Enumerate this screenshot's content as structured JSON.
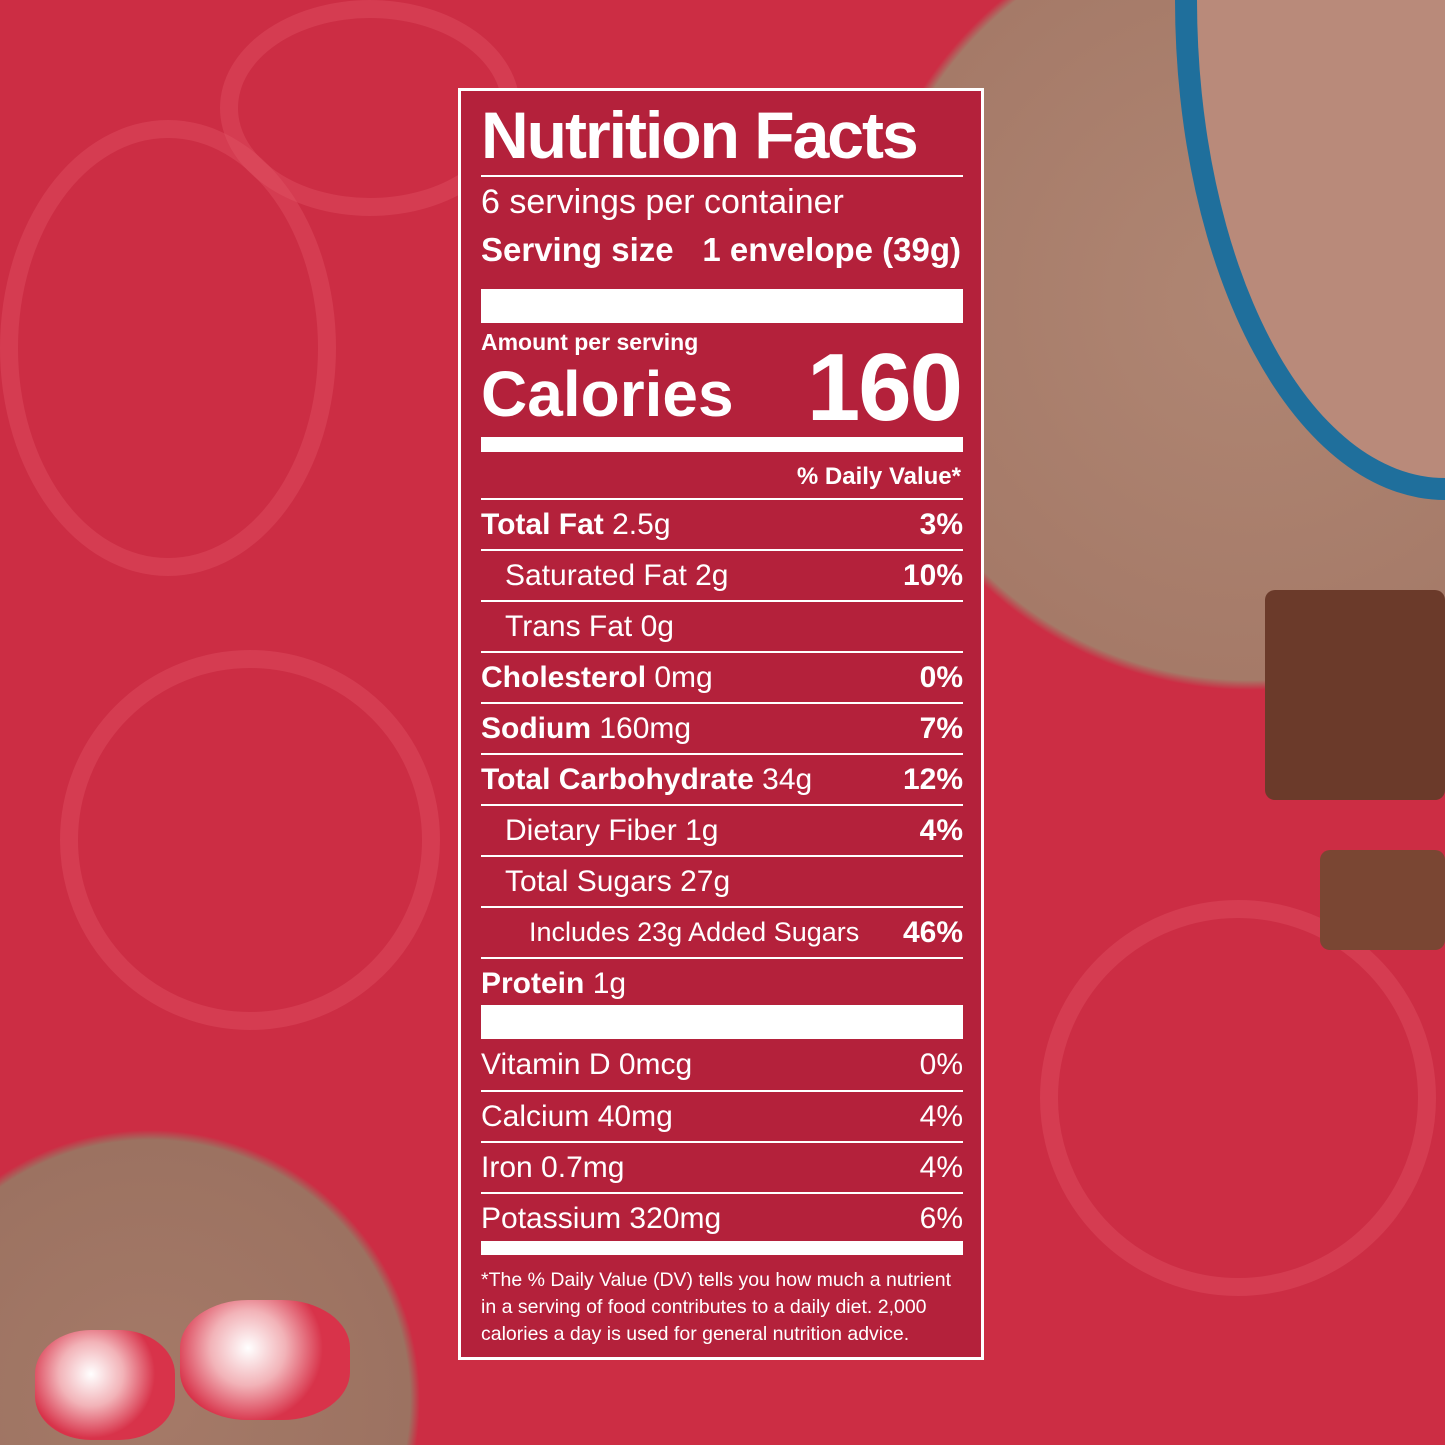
{
  "label": {
    "title": "Nutrition Facts",
    "servings_per_container": "6 servings per container",
    "serving_size_label": "Serving size",
    "serving_size_value": "1 envelope (39g)",
    "amount_per_serving": "Amount per serving",
    "calories_label": "Calories",
    "calories_value": "160",
    "daily_value_header": "% Daily Value*",
    "nutrients": [
      {
        "name": "Total Fat",
        "amount": "2.5g",
        "dv": "3%",
        "bold": true,
        "indent": 0
      },
      {
        "name": "Saturated Fat",
        "amount": "2g",
        "dv": "10%",
        "bold": false,
        "indent": 1
      },
      {
        "name": "Trans Fat",
        "amount": "0g",
        "dv": "",
        "bold": false,
        "indent": 1
      },
      {
        "name": "Cholesterol",
        "amount": "0mg",
        "dv": "0%",
        "bold": true,
        "indent": 0
      },
      {
        "name": "Sodium",
        "amount": "160mg",
        "dv": "7%",
        "bold": true,
        "indent": 0
      },
      {
        "name": "Total Carbohydrate",
        "amount": "34g",
        "dv": "12%",
        "bold": true,
        "indent": 0
      },
      {
        "name": "Dietary Fiber",
        "amount": "1g",
        "dv": "4%",
        "bold": false,
        "indent": 1
      },
      {
        "name": "Total Sugars",
        "amount": "27g",
        "dv": "",
        "bold": false,
        "indent": 1
      },
      {
        "name": "Includes 23g Added Sugars",
        "amount": "",
        "dv": "46%",
        "bold": false,
        "indent": 2
      },
      {
        "name": "Protein",
        "amount": "1g",
        "dv": "",
        "bold": true,
        "indent": 0
      }
    ],
    "vitamins": [
      {
        "name": "Vitamin D",
        "amount": "0mcg",
        "dv": "0%"
      },
      {
        "name": "Calcium",
        "amount": "40mg",
        "dv": "4%"
      },
      {
        "name": "Iron",
        "amount": "0.7mg",
        "dv": "4%"
      },
      {
        "name": "Potassium",
        "amount": "320mg",
        "dv": "6%"
      }
    ],
    "footnote": "*The % Daily Value (DV) tells you how much a nutrient in a serving of food contributes to a daily diet. 2,000 calories a day is used for general nutrition advice."
  },
  "colors": {
    "background": "#cc2d44",
    "label": "#b4213b",
    "text": "#ffffff",
    "bowl": "#1f6f9c"
  }
}
